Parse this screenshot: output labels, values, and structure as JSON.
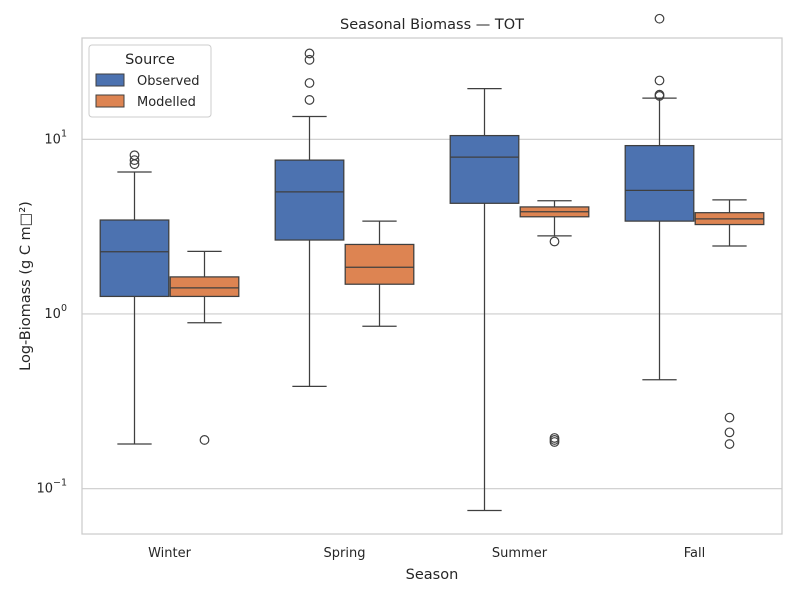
{
  "chart_data": {
    "type": "box",
    "title": "Seasonal Biomass — TOT",
    "xlabel": "Season",
    "ylabel": "Log-Biomass (g C m□²)",
    "yscale": "log",
    "ylim": [
      0.055,
      38
    ],
    "grid": "y",
    "legend": {
      "title": "Source",
      "placement": "top-left",
      "entries": [
        "Observed",
        "Modelled"
      ]
    },
    "yticks": [
      {
        "value": 0.1,
        "base": "10",
        "exp": "−1"
      },
      {
        "value": 1,
        "base": "10",
        "exp": "0"
      },
      {
        "value": 10,
        "base": "10",
        "exp": "1"
      }
    ],
    "categories": [
      "Winter",
      "Spring",
      "Summer",
      "Fall"
    ],
    "series": [
      {
        "name": "Observed",
        "color": "#4c72b0",
        "boxes": [
          {
            "whisker_low": 0.18,
            "q1": 1.26,
            "median": 2.27,
            "q3": 3.45,
            "whisker_high": 6.5,
            "outliers": [
              7.2,
              7.6,
              8.1
            ]
          },
          {
            "whisker_low": 0.385,
            "q1": 2.65,
            "median": 5.0,
            "q3": 7.6,
            "whisker_high": 13.5,
            "outliers": [
              16.8,
              21.0,
              28.5,
              31.0
            ]
          },
          {
            "whisker_low": 0.075,
            "q1": 4.3,
            "median": 7.9,
            "q3": 10.5,
            "whisker_high": 19.5,
            "outliers": []
          },
          {
            "whisker_low": 0.42,
            "q1": 3.4,
            "median": 5.1,
            "q3": 9.2,
            "whisker_high": 17.2,
            "outliers": [
              17.7,
              18.0,
              21.7,
              49.0
            ]
          }
        ]
      },
      {
        "name": "Modelled",
        "color": "#dd8452",
        "boxes": [
          {
            "whisker_low": 0.89,
            "q1": 1.26,
            "median": 1.41,
            "q3": 1.63,
            "whisker_high": 2.28,
            "outliers": [
              0.19
            ]
          },
          {
            "whisker_low": 0.85,
            "q1": 1.48,
            "median": 1.85,
            "q3": 2.5,
            "whisker_high": 3.4,
            "outliers": []
          },
          {
            "whisker_low": 2.8,
            "q1": 3.6,
            "median": 3.85,
            "q3": 4.1,
            "whisker_high": 4.45,
            "outliers": [
              2.6,
              0.185,
              0.19,
              0.195
            ]
          },
          {
            "whisker_low": 2.45,
            "q1": 3.25,
            "median": 3.5,
            "q3": 3.8,
            "whisker_high": 4.5,
            "outliers": [
              0.18,
              0.21,
              0.255
            ]
          }
        ]
      }
    ]
  }
}
